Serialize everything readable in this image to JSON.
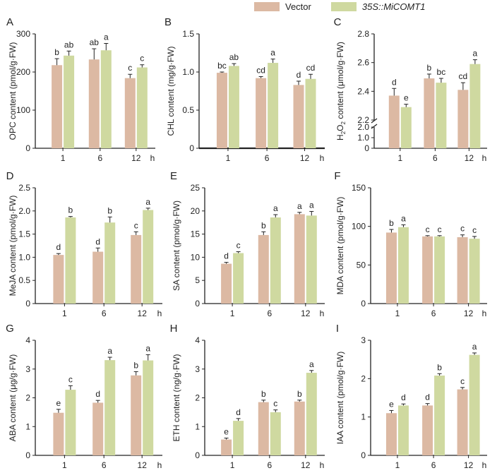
{
  "legend": {
    "vector": "Vector",
    "oe": "35S::MiCOMT1",
    "vector_color": "#dcb9a3",
    "oe_color": "#cfd9a0"
  },
  "chart_data": [
    {
      "type": "bar",
      "panel": "A",
      "ylabel": "OPC content (pmol/g·FW)",
      "categories": [
        "1",
        "6",
        "12"
      ],
      "x_unit": "h",
      "ylim": [
        0,
        300
      ],
      "yticks": [
        0,
        100,
        200,
        300
      ],
      "series": [
        {
          "name": "Vector",
          "values": [
            218,
            233,
            184
          ],
          "errors": [
            17,
            28,
            10
          ],
          "letters": [
            "b",
            "ab",
            "c"
          ]
        },
        {
          "name": "35S::MiCOMT1",
          "values": [
            243,
            257,
            212
          ],
          "errors": [
            12,
            18,
            7
          ],
          "letters": [
            "ab",
            "a",
            "c"
          ]
        }
      ]
    },
    {
      "type": "bar",
      "panel": "B",
      "ylabel": "CHL content (mg/g·FW)",
      "categories": [
        "1",
        "6",
        "12"
      ],
      "x_unit": "h",
      "ylim": [
        0,
        1.5
      ],
      "yticks": [
        0,
        0.5,
        1.0,
        1.5
      ],
      "series": [
        {
          "name": "Vector",
          "values": [
            0.99,
            0.92,
            0.83
          ],
          "errors": [
            0.01,
            0.02,
            0.05
          ],
          "letters": [
            "bc",
            "cd",
            "d"
          ]
        },
        {
          "name": "35S::MiCOMT1",
          "values": [
            1.08,
            1.12,
            0.91
          ],
          "errors": [
            0.03,
            0.05,
            0.06
          ],
          "letters": [
            "ab",
            "a",
            "cd"
          ]
        }
      ]
    },
    {
      "type": "bar",
      "panel": "C",
      "ylabel": "H2O2 content (μmol/g·FW)",
      "ylabel_parts": [
        "H",
        "2",
        "O",
        "2",
        " content (μmol/g·FW)"
      ],
      "categories": [
        "1",
        "6",
        "12"
      ],
      "x_unit": "h",
      "broken_axis": true,
      "lower_ticks": [
        0,
        1.0,
        2.0
      ],
      "upper_ticks": [
        2.2,
        2.4,
        2.6,
        2.8
      ],
      "series": [
        {
          "name": "Vector",
          "values": [
            2.37,
            2.49,
            2.41
          ],
          "errors": [
            0.05,
            0.03,
            0.05
          ],
          "letters": [
            "d",
            "b",
            "cd"
          ]
        },
        {
          "name": "35S::MiCOMT1",
          "values": [
            2.29,
            2.46,
            2.59
          ],
          "errors": [
            0.02,
            0.03,
            0.03
          ],
          "letters": [
            "e",
            "bc",
            "a"
          ]
        }
      ]
    },
    {
      "type": "bar",
      "panel": "D",
      "ylabel": "MeJA content (pmol/g·FW)",
      "categories": [
        "1",
        "6",
        "12"
      ],
      "x_unit": "h",
      "ylim": [
        0,
        2.5
      ],
      "yticks": [
        0,
        0.5,
        1.0,
        1.5,
        2.0,
        2.5
      ],
      "series": [
        {
          "name": "Vector",
          "values": [
            1.05,
            1.12,
            1.48
          ],
          "errors": [
            0.03,
            0.08,
            0.07
          ],
          "letters": [
            "d",
            "d",
            "c"
          ]
        },
        {
          "name": "35S::MiCOMT1",
          "values": [
            1.86,
            1.75,
            2.02
          ],
          "errors": [
            0.02,
            0.12,
            0.04
          ],
          "letters": [
            "b",
            "b",
            "a"
          ]
        }
      ]
    },
    {
      "type": "bar",
      "panel": "E",
      "ylabel": "SA content (pmol/g·FW)",
      "categories": [
        "1",
        "6",
        "12"
      ],
      "x_unit": "h",
      "ylim": [
        0,
        25
      ],
      "yticks": [
        0,
        5,
        10,
        15,
        20,
        25
      ],
      "series": [
        {
          "name": "Vector",
          "values": [
            8.6,
            14.8,
            19.3
          ],
          "errors": [
            0.3,
            0.7,
            0.4
          ],
          "letters": [
            "d",
            "b",
            "a"
          ]
        },
        {
          "name": "35S::MiCOMT1",
          "values": [
            10.9,
            18.6,
            19.0
          ],
          "errors": [
            0.3,
            0.6,
            0.9
          ],
          "letters": [
            "c",
            "a",
            "a"
          ]
        }
      ]
    },
    {
      "type": "bar",
      "panel": "F",
      "ylabel": "MDA content (pmol/g·FW)",
      "categories": [
        "1",
        "6",
        "12"
      ],
      "x_unit": "h",
      "ylim": [
        0,
        150
      ],
      "yticks": [
        0,
        50,
        100,
        150
      ],
      "series": [
        {
          "name": "Vector",
          "values": [
            92,
            87,
            86
          ],
          "errors": [
            4,
            1,
            3
          ],
          "letters": [
            "b",
            "c",
            "c"
          ]
        },
        {
          "name": "35S::MiCOMT1",
          "values": [
            99,
            87,
            84
          ],
          "errors": [
            3,
            1,
            3
          ],
          "letters": [
            "a",
            "c",
            "c"
          ]
        }
      ]
    },
    {
      "type": "bar",
      "panel": "G",
      "ylabel": "ABA content (μg/g·FW)",
      "categories": [
        "1",
        "6",
        "12"
      ],
      "x_unit": "h",
      "ylim": [
        0,
        4
      ],
      "yticks": [
        0,
        1,
        2,
        3,
        4
      ],
      "series": [
        {
          "name": "Vector",
          "values": [
            1.48,
            1.83,
            2.78
          ],
          "errors": [
            0.12,
            0.08,
            0.13
          ],
          "letters": [
            "e",
            "d",
            "b"
          ]
        },
        {
          "name": "35S::MiCOMT1",
          "values": [
            2.28,
            3.31,
            3.3
          ],
          "errors": [
            0.14,
            0.1,
            0.2
          ],
          "letters": [
            "c",
            "a",
            "a"
          ]
        }
      ]
    },
    {
      "type": "bar",
      "panel": "H",
      "ylabel": "ETH content (ng/g·FW)",
      "categories": [
        "1",
        "6",
        "12"
      ],
      "x_unit": "h",
      "ylim": [
        0,
        4
      ],
      "yticks": [
        0,
        1,
        2,
        3,
        4
      ],
      "series": [
        {
          "name": "Vector",
          "values": [
            0.55,
            1.85,
            1.87
          ],
          "errors": [
            0.05,
            0.07,
            0.05
          ],
          "letters": [
            "e",
            "b",
            "b"
          ]
        },
        {
          "name": "35S::MiCOMT1",
          "values": [
            1.2,
            1.5,
            2.87
          ],
          "errors": [
            0.08,
            0.08,
            0.08
          ],
          "letters": [
            "d",
            "c",
            "a"
          ]
        }
      ]
    },
    {
      "type": "bar",
      "panel": "I",
      "ylabel": "IAA content (pmol/g·FW)",
      "categories": [
        "1",
        "6",
        "12"
      ],
      "x_unit": "h",
      "ylim": [
        0,
        3
      ],
      "yticks": [
        0,
        1,
        2,
        3
      ],
      "series": [
        {
          "name": "Vector",
          "values": [
            1.1,
            1.3,
            1.72
          ],
          "errors": [
            0.07,
            0.05,
            0.05
          ],
          "letters": [
            "e",
            "d",
            "c"
          ]
        },
        {
          "name": "35S::MiCOMT1",
          "values": [
            1.3,
            2.08,
            2.62
          ],
          "errors": [
            0.04,
            0.05,
            0.05
          ],
          "letters": [
            "d",
            "b",
            "a"
          ]
        }
      ]
    }
  ]
}
